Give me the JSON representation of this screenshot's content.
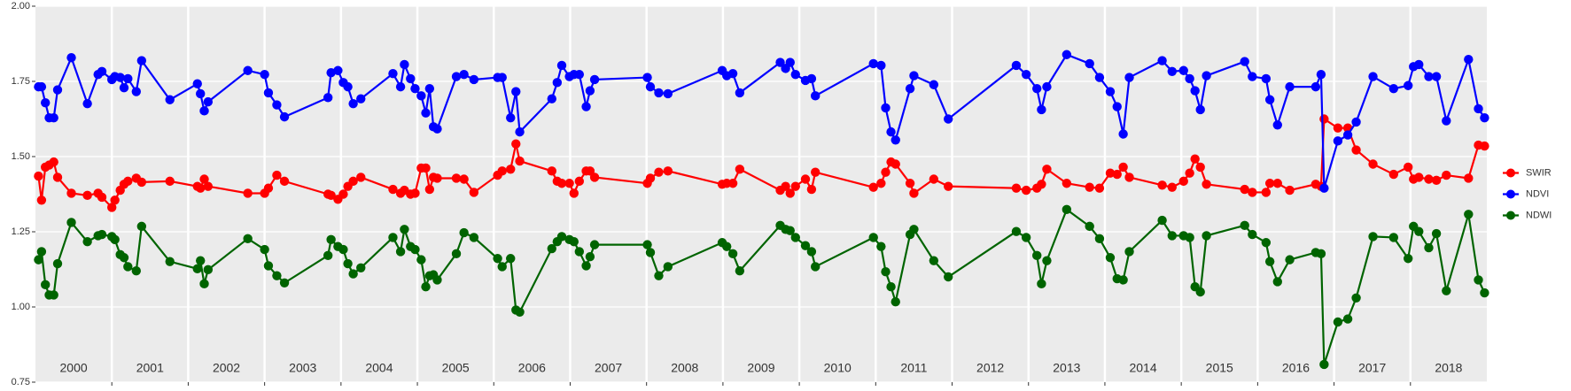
{
  "chart_data": {
    "type": "line",
    "x": [
      2000.04,
      2000.08,
      2000.13,
      2000.18,
      2000.24,
      2000.29,
      2000.47,
      2000.68,
      2000.82,
      2000.87,
      2001.0,
      2001.04,
      2001.11,
      2001.16,
      2001.21,
      2001.32,
      2001.39,
      2001.76,
      2002.12,
      2002.16,
      2002.21,
      2002.26,
      2002.78,
      2003.0,
      2003.05,
      2003.16,
      2003.26,
      2003.83,
      2003.87,
      2003.96,
      2004.03,
      2004.09,
      2004.16,
      2004.26,
      2004.68,
      2004.78,
      2004.83,
      2004.91,
      2004.97,
      2005.05,
      2005.11,
      2005.16,
      2005.21,
      2005.26,
      2005.51,
      2005.61,
      2005.74,
      2006.05,
      2006.11,
      2006.22,
      2006.29,
      2006.34,
      2006.76,
      2006.83,
      2006.89,
      2006.99,
      2007.05,
      2007.12,
      2007.21,
      2007.26,
      2007.32,
      2008.01,
      2008.05,
      2008.16,
      2008.28,
      2008.99,
      2009.05,
      2009.13,
      2009.22,
      2009.75,
      2009.82,
      2009.88,
      2009.95,
      2010.08,
      2010.16,
      2010.21,
      2010.97,
      2011.07,
      2011.13,
      2011.2,
      2011.26,
      2011.45,
      2011.5,
      2011.76,
      2011.95,
      2012.84,
      2012.97,
      2013.11,
      2013.17,
      2013.24,
      2013.5,
      2013.8,
      2013.93,
      2014.07,
      2014.16,
      2014.24,
      2014.32,
      2014.75,
      2014.88,
      2015.03,
      2015.11,
      2015.18,
      2015.25,
      2015.33,
      2015.83,
      2015.93,
      2016.11,
      2016.16,
      2016.26,
      2016.42,
      2016.76,
      2016.83,
      2016.87,
      2017.05,
      2017.18,
      2017.29,
      2017.51,
      2017.78,
      2017.97,
      2018.04,
      2018.11,
      2018.24,
      2018.34,
      2018.47,
      2018.76,
      2018.89,
      2018.97
    ],
    "series": [
      {
        "name": "SWIR",
        "color": "#ff0000",
        "values": [
          1.435,
          1.355,
          1.465,
          1.472,
          1.482,
          1.431,
          1.378,
          1.371,
          1.378,
          1.365,
          1.331,
          1.355,
          1.388,
          1.408,
          1.418,
          1.428,
          1.415,
          1.418,
          1.401,
          1.395,
          1.425,
          1.401,
          1.378,
          1.378,
          1.395,
          1.438,
          1.418,
          1.375,
          1.371,
          1.358,
          1.375,
          1.401,
          1.418,
          1.431,
          1.391,
          1.378,
          1.388,
          1.375,
          1.378,
          1.462,
          1.462,
          1.391,
          1.431,
          1.428,
          1.428,
          1.425,
          1.381,
          1.438,
          1.452,
          1.458,
          1.542,
          1.485,
          1.452,
          1.418,
          1.411,
          1.411,
          1.378,
          1.418,
          1.452,
          1.452,
          1.431,
          1.411,
          1.428,
          1.448,
          1.452,
          1.408,
          1.411,
          1.411,
          1.458,
          1.388,
          1.401,
          1.378,
          1.401,
          1.425,
          1.391,
          1.448,
          1.398,
          1.411,
          1.448,
          1.482,
          1.475,
          1.411,
          1.378,
          1.425,
          1.401,
          1.395,
          1.388,
          1.395,
          1.408,
          1.458,
          1.411,
          1.398,
          1.395,
          1.445,
          1.441,
          1.465,
          1.431,
          1.405,
          1.398,
          1.418,
          1.445,
          1.492,
          1.465,
          1.408,
          1.391,
          1.381,
          1.381,
          1.411,
          1.411,
          1.388,
          1.408,
          1.401,
          1.625,
          1.595,
          1.595,
          1.522,
          1.475,
          1.441,
          1.465,
          1.425,
          1.431,
          1.425,
          1.421,
          1.438,
          1.428,
          1.538,
          1.535
        ]
      },
      {
        "name": "NDVI",
        "color": "#0000ff",
        "values": [
          1.732,
          1.732,
          1.679,
          1.629,
          1.629,
          1.722,
          1.829,
          1.676,
          1.773,
          1.783,
          1.756,
          1.766,
          1.763,
          1.729,
          1.759,
          1.716,
          1.819,
          1.689,
          1.742,
          1.709,
          1.652,
          1.682,
          1.786,
          1.773,
          1.712,
          1.672,
          1.632,
          1.696,
          1.779,
          1.786,
          1.746,
          1.732,
          1.676,
          1.692,
          1.776,
          1.732,
          1.806,
          1.759,
          1.726,
          1.702,
          1.645,
          1.726,
          1.599,
          1.592,
          1.766,
          1.773,
          1.756,
          1.763,
          1.763,
          1.629,
          1.716,
          1.582,
          1.692,
          1.746,
          1.803,
          1.766,
          1.773,
          1.773,
          1.666,
          1.719,
          1.756,
          1.763,
          1.732,
          1.712,
          1.709,
          1.786,
          1.769,
          1.776,
          1.712,
          1.813,
          1.793,
          1.813,
          1.773,
          1.753,
          1.759,
          1.702,
          1.809,
          1.803,
          1.662,
          1.582,
          1.555,
          1.726,
          1.769,
          1.739,
          1.625,
          1.803,
          1.773,
          1.726,
          1.656,
          1.732,
          1.839,
          1.809,
          1.763,
          1.716,
          1.666,
          1.575,
          1.763,
          1.819,
          1.783,
          1.786,
          1.759,
          1.719,
          1.656,
          1.769,
          1.816,
          1.766,
          1.759,
          1.689,
          1.605,
          1.732,
          1.732,
          1.773,
          1.395,
          1.552,
          1.572,
          1.615,
          1.766,
          1.726,
          1.736,
          1.799,
          1.806,
          1.766,
          1.766,
          1.619,
          1.823,
          1.659,
          1.629
        ]
      },
      {
        "name": "NDWI",
        "color": "#006400",
        "values": [
          1.157,
          1.184,
          1.074,
          1.04,
          1.04,
          1.144,
          1.281,
          1.217,
          1.237,
          1.241,
          1.234,
          1.224,
          1.174,
          1.164,
          1.134,
          1.12,
          1.268,
          1.151,
          1.127,
          1.154,
          1.077,
          1.124,
          1.227,
          1.191,
          1.137,
          1.104,
          1.08,
          1.171,
          1.224,
          1.201,
          1.191,
          1.144,
          1.11,
          1.13,
          1.231,
          1.184,
          1.258,
          1.201,
          1.191,
          1.157,
          1.067,
          1.104,
          1.107,
          1.09,
          1.177,
          1.247,
          1.231,
          1.161,
          1.134,
          1.161,
          0.99,
          0.983,
          1.194,
          1.217,
          1.234,
          1.224,
          1.217,
          1.184,
          1.137,
          1.167,
          1.207,
          1.207,
          1.181,
          1.104,
          1.134,
          1.214,
          1.201,
          1.177,
          1.12,
          1.271,
          1.258,
          1.254,
          1.231,
          1.204,
          1.184,
          1.134,
          1.231,
          1.201,
          1.117,
          1.067,
          1.017,
          1.241,
          1.258,
          1.154,
          1.1,
          1.251,
          1.231,
          1.171,
          1.077,
          1.154,
          1.324,
          1.268,
          1.227,
          1.164,
          1.094,
          1.09,
          1.184,
          1.288,
          1.237,
          1.237,
          1.231,
          1.067,
          1.05,
          1.237,
          1.271,
          1.241,
          1.214,
          1.151,
          1.084,
          1.157,
          1.181,
          1.177,
          0.809,
          0.95,
          0.96,
          1.03,
          1.234,
          1.231,
          1.161,
          1.268,
          1.251,
          1.197,
          1.244,
          1.054,
          1.308,
          1.09,
          1.047
        ]
      }
    ],
    "xlim": [
      2000,
      2019
    ],
    "xticks": [
      {
        "value": 2000,
        "label": "2000"
      },
      {
        "value": 2001,
        "label": "2001"
      },
      {
        "value": 2002,
        "label": "2002"
      },
      {
        "value": 2003,
        "label": "2003"
      },
      {
        "value": 2004,
        "label": "2004"
      },
      {
        "value": 2005,
        "label": "2005"
      },
      {
        "value": 2006,
        "label": "2006"
      },
      {
        "value": 2007,
        "label": "2007"
      },
      {
        "value": 2008,
        "label": "2008"
      },
      {
        "value": 2009,
        "label": "2009"
      },
      {
        "value": 2010,
        "label": "2010"
      },
      {
        "value": 2011,
        "label": "2011"
      },
      {
        "value": 2012,
        "label": "2012"
      },
      {
        "value": 2013,
        "label": "2013"
      },
      {
        "value": 2014,
        "label": "2014"
      },
      {
        "value": 2015,
        "label": "2015"
      },
      {
        "value": 2016,
        "label": "2016"
      },
      {
        "value": 2017,
        "label": "2017"
      },
      {
        "value": 2018,
        "label": "2018"
      }
    ],
    "ylim": [
      0.75,
      2.0
    ],
    "yticks": [
      0.75,
      {
        "value": 1.0,
        "label": "1.00"
      },
      1.25,
      {
        "value": 1.5,
        "label": "1.50"
      },
      1.75,
      {
        "value": 2.0,
        "label": "2.00"
      }
    ],
    "grid": true,
    "legend": "right"
  }
}
